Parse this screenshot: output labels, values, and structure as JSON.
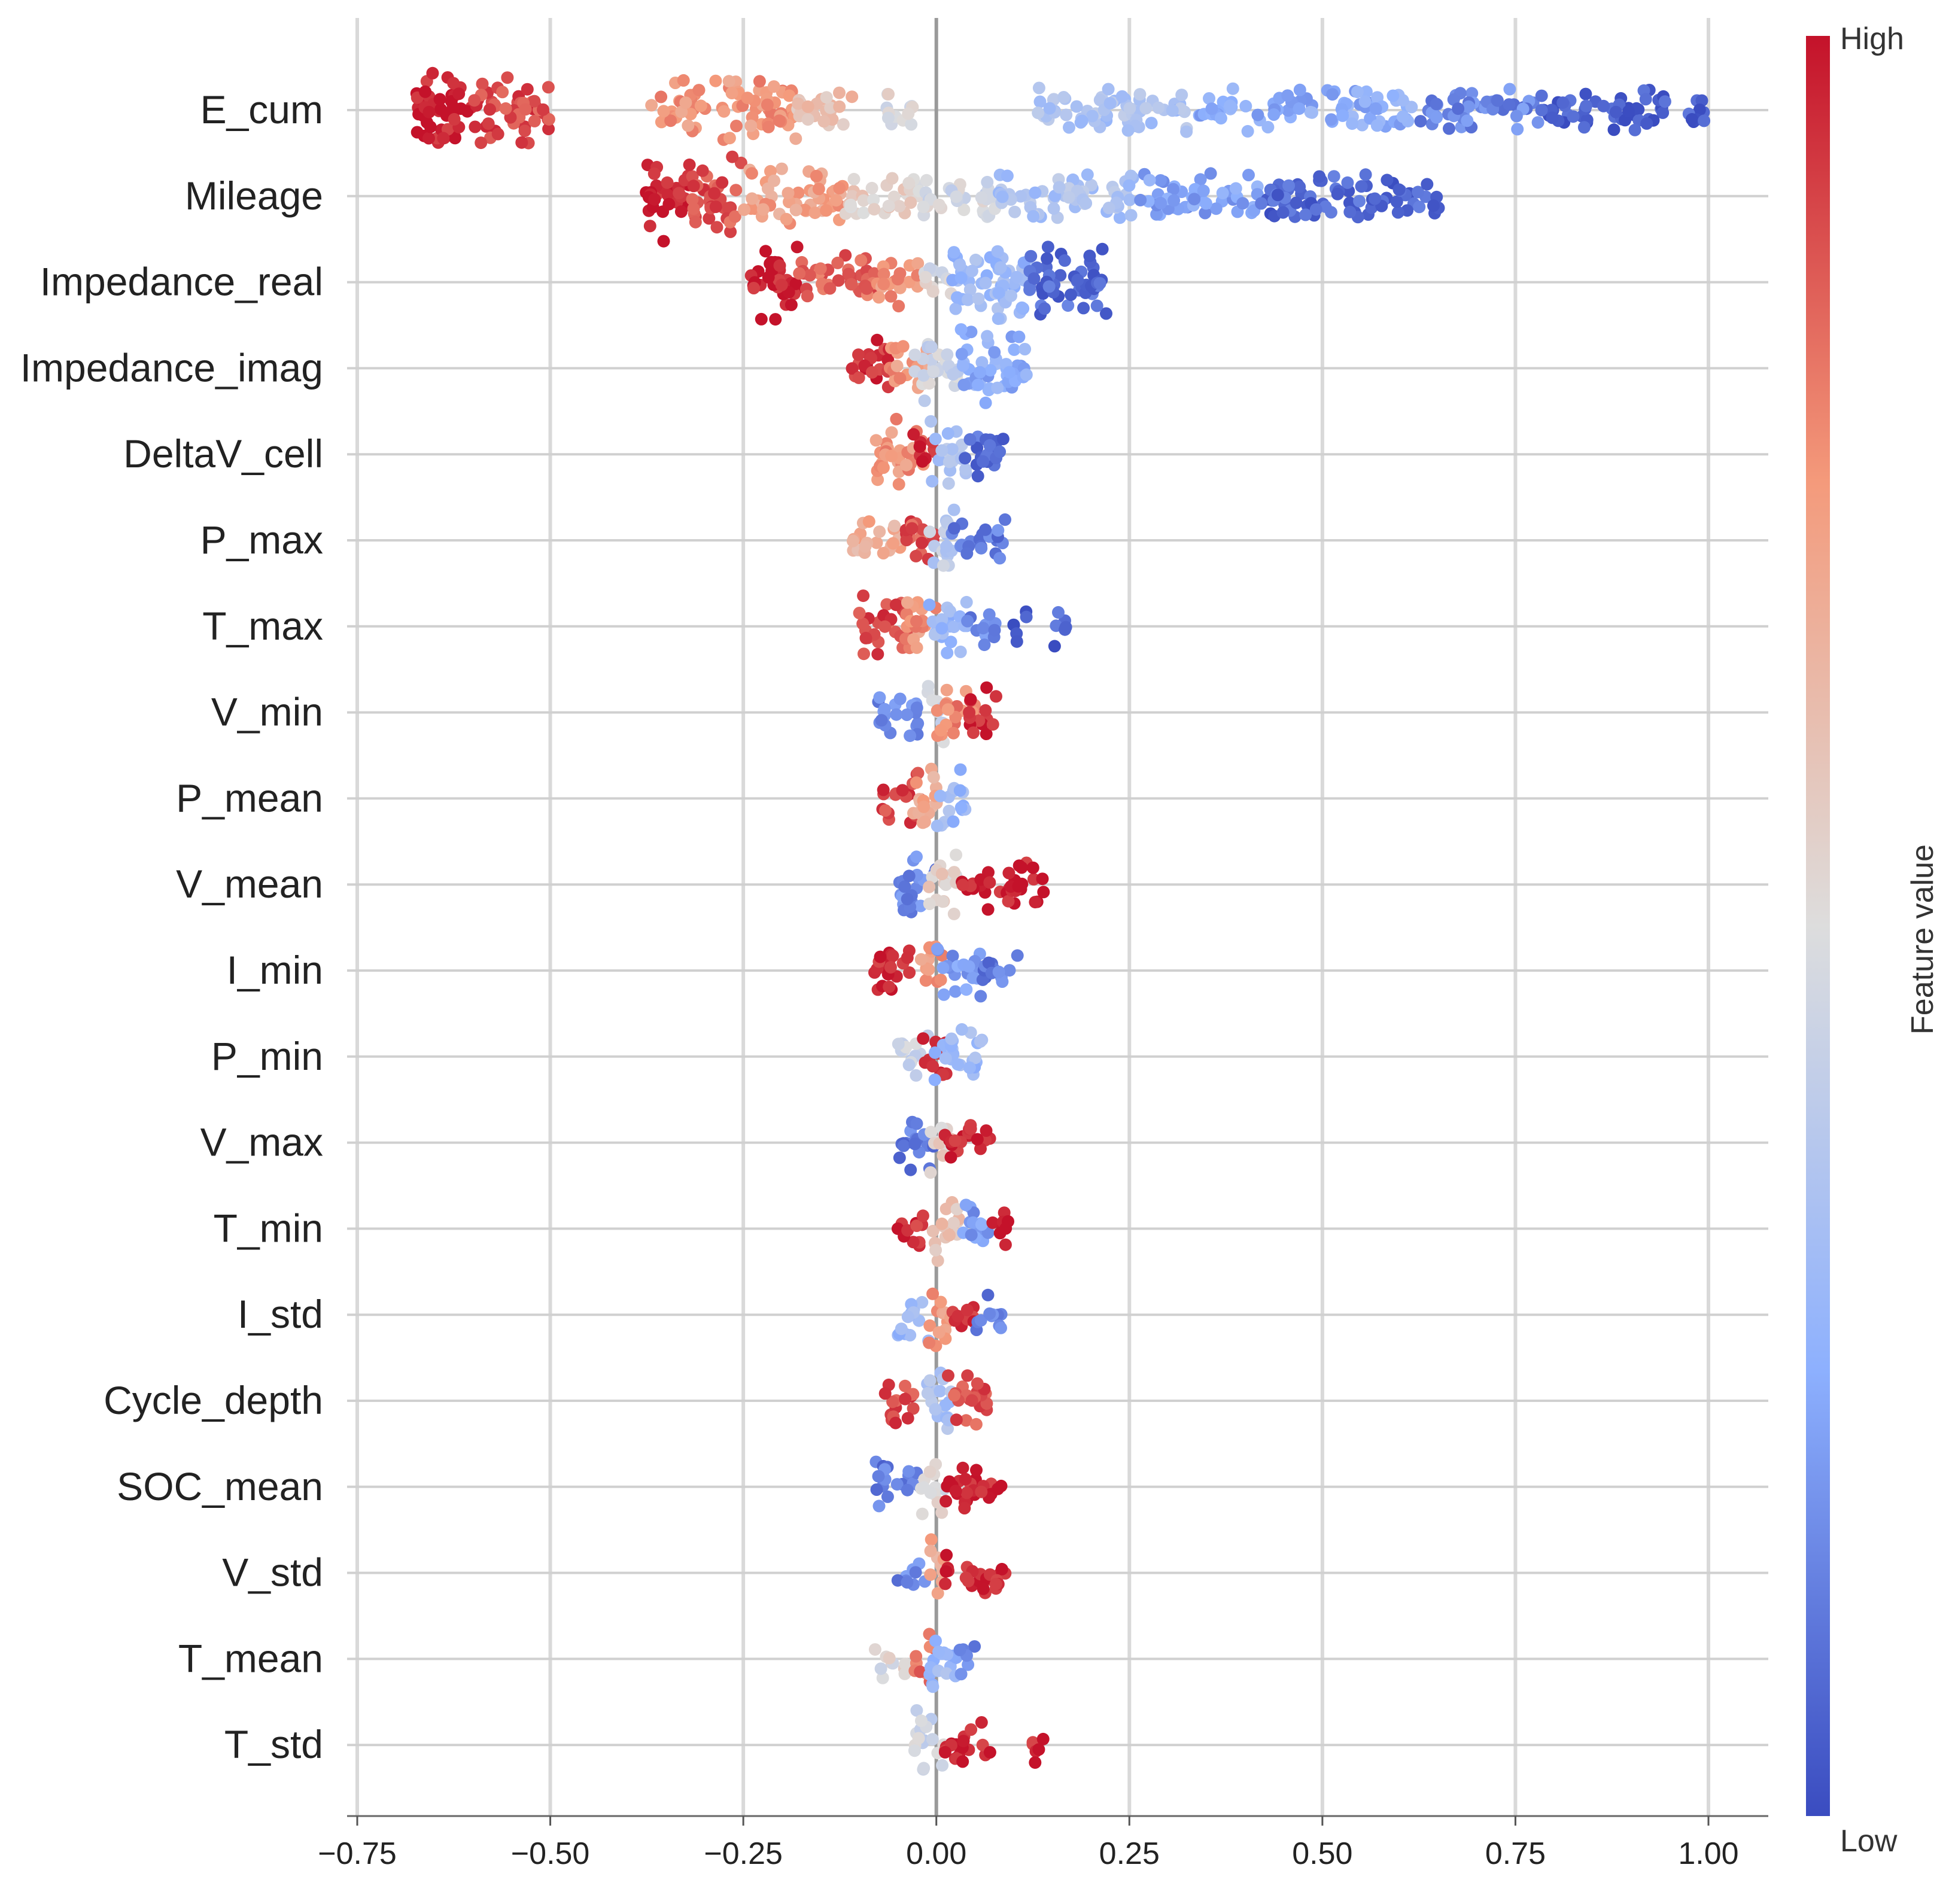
{
  "chart_data": {
    "type": "scatter",
    "subtype": "shap-beeswarm",
    "xlim": [
      -0.75,
      1.0
    ],
    "x_ticks": [
      "−0.75",
      "−0.50",
      "−0.25",
      "0.00",
      "0.25",
      "0.50",
      "0.75",
      "1.00"
    ],
    "x_tick_values": [
      -0.75,
      -0.5,
      -0.25,
      0.0,
      0.25,
      0.5,
      0.75,
      1.0
    ],
    "grid": true,
    "zero_line": true,
    "colorbar": {
      "label": "Feature value",
      "high_label": "High",
      "low_label": "Low",
      "colors": [
        "#3a4cc0",
        "#8db0fe",
        "#dddddd",
        "#f49a7b",
        "#c4122a"
      ],
      "placement": "right"
    },
    "features": [
      {
        "name": "E_cum",
        "clusters": [
          [
            -0.68,
            -0.6,
            0.98,
            1.6
          ],
          [
            -0.6,
            -0.5,
            0.9,
            1.1
          ],
          [
            -0.37,
            -0.18,
            0.75,
            0.8
          ],
          [
            -0.18,
            -0.1,
            0.62,
            0.5
          ],
          [
            -0.07,
            -0.03,
            0.5,
            0.5
          ],
          [
            0.13,
            0.33,
            0.35,
            0.5
          ],
          [
            0.33,
            0.62,
            0.25,
            0.4
          ],
          [
            0.62,
            0.78,
            0.15,
            0.4
          ],
          [
            0.78,
            1.0,
            0.04,
            0.4
          ]
        ]
      },
      {
        "name": "Mileage",
        "clusters": [
          [
            -0.38,
            -0.32,
            0.98,
            1.6
          ],
          [
            -0.32,
            -0.25,
            0.88,
            1.3
          ],
          [
            -0.25,
            -0.12,
            0.72,
            0.8
          ],
          [
            -0.12,
            -0.02,
            0.55,
            0.5
          ],
          [
            -0.02,
            0.08,
            0.47,
            0.5
          ],
          [
            0.08,
            0.26,
            0.35,
            0.55
          ],
          [
            0.26,
            0.42,
            0.22,
            0.5
          ],
          [
            0.42,
            0.66,
            0.07,
            0.5
          ]
        ]
      },
      {
        "name": "Impedance_real",
        "clusters": [
          [
            -0.24,
            -0.18,
            0.98,
            1.2
          ],
          [
            -0.18,
            -0.08,
            0.85,
            0.7
          ],
          [
            -0.08,
            -0.02,
            0.75,
            0.6
          ],
          [
            -0.02,
            0.02,
            0.5,
            0.4
          ],
          [
            0.02,
            0.12,
            0.3,
            1.4
          ],
          [
            0.12,
            0.22,
            0.08,
            1.2
          ]
        ]
      },
      {
        "name": "Impedance_imag",
        "clusters": [
          [
            -0.11,
            -0.06,
            0.95,
            0.9
          ],
          [
            -0.06,
            -0.01,
            0.75,
            0.7
          ],
          [
            -0.03,
            0.03,
            0.45,
            1.0
          ],
          [
            0.03,
            0.12,
            0.25,
            1.2
          ]
        ]
      },
      {
        "name": "DeltaV_cell",
        "clusters": [
          [
            -0.08,
            -0.01,
            0.75,
            1.0
          ],
          [
            -0.03,
            0.0,
            0.97,
            0.5
          ],
          [
            -0.01,
            0.04,
            0.35,
            1.0
          ],
          [
            0.03,
            0.09,
            0.08,
            0.6
          ]
        ]
      },
      {
        "name": "P_max",
        "clusters": [
          [
            -0.11,
            -0.04,
            0.68,
            0.6
          ],
          [
            -0.04,
            0.0,
            0.88,
            1.0
          ],
          [
            -0.01,
            0.03,
            0.4,
            0.9
          ],
          [
            0.02,
            0.09,
            0.12,
            0.6
          ]
        ]
      },
      {
        "name": "T_max",
        "clusters": [
          [
            -0.1,
            -0.03,
            0.9,
            0.8
          ],
          [
            -0.04,
            0.0,
            0.75,
            1.0
          ],
          [
            -0.01,
            0.04,
            0.3,
            0.9
          ],
          [
            0.04,
            0.08,
            0.15,
            0.5
          ],
          [
            0.1,
            0.12,
            0.06,
            0.3
          ],
          [
            0.15,
            0.17,
            0.06,
            0.3
          ]
        ]
      },
      {
        "name": "V_min",
        "clusters": [
          [
            -0.08,
            -0.02,
            0.15,
            0.7
          ],
          [
            -0.02,
            0.01,
            0.45,
            0.8
          ],
          [
            0.0,
            0.05,
            0.78,
            0.8
          ],
          [
            0.04,
            0.08,
            0.97,
            0.6
          ]
        ]
      },
      {
        "name": "P_mean",
        "clusters": [
          [
            -0.07,
            -0.02,
            0.92,
            0.6
          ],
          [
            -0.03,
            0.01,
            0.7,
            0.9
          ],
          [
            0.0,
            0.04,
            0.3,
            0.8
          ]
        ]
      },
      {
        "name": "V_mean",
        "clusters": [
          [
            -0.05,
            0.0,
            0.15,
            1.0
          ],
          [
            -0.01,
            0.03,
            0.55,
            0.9
          ],
          [
            0.03,
            0.14,
            0.98,
            0.5
          ]
        ]
      },
      {
        "name": "I_min",
        "clusters": [
          [
            -0.08,
            -0.02,
            0.97,
            0.6
          ],
          [
            -0.02,
            0.01,
            0.75,
            1.0
          ],
          [
            0.0,
            0.06,
            0.2,
            0.7
          ],
          [
            0.06,
            0.11,
            0.12,
            0.4
          ]
        ]
      },
      {
        "name": "P_min",
        "clusters": [
          [
            -0.05,
            -0.01,
            0.45,
            0.6
          ],
          [
            -0.02,
            0.02,
            0.98,
            0.7
          ],
          [
            -0.01,
            0.06,
            0.3,
            0.7
          ]
        ]
      },
      {
        "name": "V_max",
        "clusters": [
          [
            -0.05,
            0.0,
            0.12,
            0.7
          ],
          [
            -0.01,
            0.02,
            0.55,
            0.9
          ],
          [
            0.01,
            0.07,
            0.97,
            0.5
          ]
        ]
      },
      {
        "name": "T_min",
        "clusters": [
          [
            -0.05,
            -0.01,
            0.95,
            0.4
          ],
          [
            -0.01,
            0.03,
            0.6,
            0.9
          ],
          [
            0.03,
            0.07,
            0.2,
            0.5
          ],
          [
            0.07,
            0.1,
            0.97,
            0.4
          ]
        ]
      },
      {
        "name": "I_std",
        "clusters": [
          [
            -0.05,
            -0.01,
            0.3,
            0.6
          ],
          [
            -0.01,
            0.02,
            0.75,
            1.0
          ],
          [
            0.02,
            0.05,
            0.95,
            0.5
          ],
          [
            0.05,
            0.09,
            0.12,
            0.4
          ]
        ]
      },
      {
        "name": "Cycle_depth",
        "clusters": [
          [
            -0.07,
            -0.02,
            0.9,
            0.5
          ],
          [
            -0.02,
            0.02,
            0.35,
            1.0
          ],
          [
            0.01,
            0.07,
            0.88,
            0.6
          ]
        ]
      },
      {
        "name": "SOC_mean",
        "clusters": [
          [
            -0.08,
            -0.02,
            0.12,
            0.5
          ],
          [
            -0.02,
            0.01,
            0.5,
            1.0
          ],
          [
            0.01,
            0.09,
            0.97,
            0.5
          ]
        ]
      },
      {
        "name": "V_std",
        "clusters": [
          [
            -0.05,
            -0.01,
            0.15,
            0.4
          ],
          [
            -0.01,
            0.01,
            0.7,
            1.0
          ],
          [
            0.01,
            0.09,
            0.97,
            0.5
          ]
        ]
      },
      {
        "name": "T_mean",
        "clusters": [
          [
            -0.08,
            -0.04,
            0.5,
            0.3
          ],
          [
            -0.03,
            0.0,
            0.85,
            0.6
          ],
          [
            -0.01,
            0.03,
            0.3,
            0.9
          ],
          [
            0.03,
            0.05,
            0.15,
            0.3
          ]
        ]
      },
      {
        "name": "T_std",
        "clusters": [
          [
            -0.03,
            0.01,
            0.45,
            1.0
          ],
          [
            0.01,
            0.07,
            0.97,
            0.5
          ],
          [
            0.12,
            0.14,
            0.97,
            0.3
          ]
        ]
      }
    ]
  }
}
